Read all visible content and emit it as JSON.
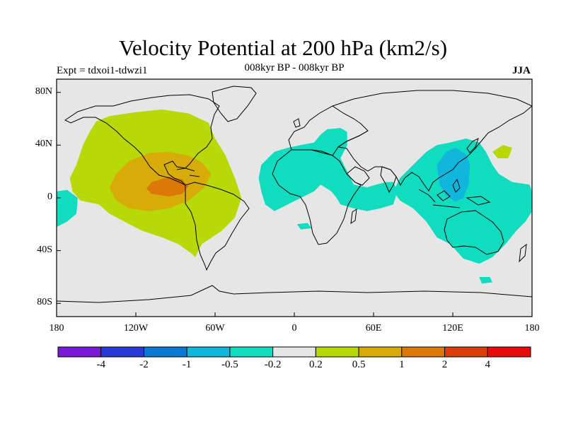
{
  "title": "Velocity Potential at 200 hPa (km2/s)",
  "subtitle": "008kyr BP - 008kyr BP",
  "experiment": "Expt = tdxoi1-tdwzi1",
  "season": "JJA",
  "map": {
    "projection": "cylindrical equidistant",
    "lon_range": [
      -180,
      180
    ],
    "lat_range": [
      -90,
      90
    ],
    "lat_ticks": [
      {
        "value": 80,
        "label": "80N"
      },
      {
        "value": 40,
        "label": "40N"
      },
      {
        "value": 0,
        "label": "0"
      },
      {
        "value": -40,
        "label": "40S"
      },
      {
        "value": -80,
        "label": "80S"
      }
    ],
    "lon_ticks": [
      {
        "value": -180,
        "label": "180"
      },
      {
        "value": -120,
        "label": "120W"
      },
      {
        "value": -60,
        "label": "60W"
      },
      {
        "value": 0,
        "label": "0"
      },
      {
        "value": 60,
        "label": "60E"
      },
      {
        "value": 120,
        "label": "120E"
      },
      {
        "value": 180,
        "label": "180"
      }
    ],
    "background_color": "#e6e6e6",
    "coastline_color": "#000000"
  },
  "colorbar": {
    "levels": [
      "-4",
      "-2",
      "-1",
      "-0.5",
      "-0.2",
      "0.2",
      "0.5",
      "1",
      "2",
      "4"
    ],
    "colors": [
      "#7a18d8",
      "#2a3ad6",
      "#0a78d4",
      "#10b6dc",
      "#10dcc0",
      "#e6e6e6",
      "#b8d808",
      "#d8ac08",
      "#dc7808",
      "#dc3c08",
      "#e60c0c"
    ]
  },
  "fields": [
    {
      "name": "americas-positive-0.2-0.5",
      "level": "0.2 to 0.5",
      "color": "#b8d808",
      "polygon": [
        [
          -150,
          58
        ],
        [
          -140,
          62
        ],
        [
          -120,
          65
        ],
        [
          -100,
          67
        ],
        [
          -80,
          64
        ],
        [
          -65,
          57
        ],
        [
          -60,
          45
        ],
        [
          -52,
          32
        ],
        [
          -45,
          15
        ],
        [
          -40,
          0
        ],
        [
          -45,
          -15
        ],
        [
          -55,
          -25
        ],
        [
          -70,
          -35
        ],
        [
          -75,
          -45
        ],
        [
          -78,
          -42
        ],
        [
          -88,
          -35
        ],
        [
          -100,
          -30
        ],
        [
          -115,
          -25
        ],
        [
          -125,
          -20
        ],
        [
          -140,
          -12
        ],
        [
          -148,
          -5
        ],
        [
          -162,
          -2
        ],
        [
          -168,
          5
        ],
        [
          -170,
          15
        ],
        [
          -165,
          25
        ],
        [
          -160,
          40
        ],
        [
          -155,
          50
        ]
      ]
    },
    {
      "name": "americas-positive-0.5-1",
      "level": "0.5 to 1",
      "color": "#d8ac08",
      "polygon": [
        [
          -125,
          28
        ],
        [
          -110,
          34
        ],
        [
          -95,
          35
        ],
        [
          -80,
          32
        ],
        [
          -70,
          27
        ],
        [
          -63,
          18
        ],
        [
          -68,
          8
        ],
        [
          -80,
          -2
        ],
        [
          -95,
          -8
        ],
        [
          -110,
          -10
        ],
        [
          -125,
          -8
        ],
        [
          -135,
          -2
        ],
        [
          -140,
          8
        ],
        [
          -135,
          18
        ]
      ]
    },
    {
      "name": "americas-positive-1-2",
      "level": "1 to 2",
      "color": "#dc7808",
      "polygon": [
        [
          -108,
          12
        ],
        [
          -95,
          16
        ],
        [
          -85,
          14
        ],
        [
          -80,
          9
        ],
        [
          -85,
          3
        ],
        [
          -95,
          1
        ],
        [
          -108,
          3
        ],
        [
          -112,
          7
        ]
      ]
    },
    {
      "name": "africa-negative",
      "level": "-0.5 to -0.2",
      "color": "#10dcc0",
      "polygon": [
        [
          -25,
          25
        ],
        [
          -15,
          35
        ],
        [
          -5,
          38
        ],
        [
          5,
          40
        ],
        [
          15,
          42
        ],
        [
          20,
          48
        ],
        [
          25,
          52
        ],
        [
          35,
          53
        ],
        [
          40,
          50
        ],
        [
          40,
          40
        ],
        [
          35,
          30
        ],
        [
          40,
          20
        ],
        [
          45,
          10
        ],
        [
          55,
          8
        ],
        [
          62,
          10
        ],
        [
          70,
          12
        ],
        [
          75,
          12
        ],
        [
          78,
          5
        ],
        [
          75,
          -5
        ],
        [
          65,
          -8
        ],
        [
          55,
          -10
        ],
        [
          45,
          -8
        ],
        [
          35,
          -5
        ],
        [
          32,
          0
        ],
        [
          28,
          5
        ],
        [
          20,
          10
        ],
        [
          15,
          5
        ],
        [
          5,
          0
        ],
        [
          -5,
          -5
        ],
        [
          -15,
          -10
        ],
        [
          -22,
          -5
        ],
        [
          -25,
          5
        ],
        [
          -27,
          15
        ]
      ]
    },
    {
      "name": "indonesia-negative",
      "level": "-0.5 to -0.2",
      "color": "#10dcc0",
      "polygon": [
        [
          80,
          15
        ],
        [
          90,
          25
        ],
        [
          100,
          35
        ],
        [
          108,
          40
        ],
        [
          118,
          42
        ],
        [
          130,
          45
        ],
        [
          140,
          42
        ],
        [
          145,
          35
        ],
        [
          150,
          25
        ],
        [
          155,
          18
        ],
        [
          165,
          12
        ],
        [
          178,
          10
        ],
        [
          180,
          5
        ],
        [
          180,
          -10
        ],
        [
          175,
          -18
        ],
        [
          168,
          -25
        ],
        [
          160,
          -35
        ],
        [
          150,
          -45
        ],
        [
          140,
          -50
        ],
        [
          128,
          -46
        ],
        [
          118,
          -35
        ],
        [
          108,
          -30
        ],
        [
          100,
          -18
        ],
        [
          90,
          -8
        ],
        [
          80,
          -2
        ],
        [
          75,
          5
        ]
      ]
    },
    {
      "name": "indonesia-negative-core",
      "level": "-1 to -0.5",
      "color": "#10b6dc",
      "polygon": [
        [
          108,
          25
        ],
        [
          115,
          35
        ],
        [
          122,
          38
        ],
        [
          130,
          33
        ],
        [
          133,
          25
        ],
        [
          132,
          10
        ],
        [
          128,
          0
        ],
        [
          122,
          -3
        ],
        [
          115,
          2
        ],
        [
          110,
          10
        ]
      ]
    },
    {
      "name": "pacific-east-negative",
      "level": "-0.5 to -0.2",
      "color": "#10dcc0",
      "polygon": [
        [
          -180,
          5
        ],
        [
          -172,
          6
        ],
        [
          -164,
          0
        ],
        [
          -165,
          -12
        ],
        [
          -172,
          -18
        ],
        [
          -180,
          -22
        ]
      ]
    },
    {
      "name": "pacific-west-positive",
      "level": "0.2 to 0.5",
      "color": "#b8d808",
      "polygon": [
        [
          150,
          35
        ],
        [
          158,
          40
        ],
        [
          165,
          38
        ],
        [
          162,
          30
        ],
        [
          154,
          30
        ]
      ]
    },
    {
      "name": "south-patch-1",
      "level": "-0.5 to -0.2",
      "color": "#10dcc0",
      "polygon": [
        [
          2,
          -20
        ],
        [
          10,
          -19
        ],
        [
          13,
          -23
        ],
        [
          5,
          -24
        ]
      ]
    },
    {
      "name": "south-patch-2",
      "level": "-0.5 to -0.2",
      "color": "#10dcc0",
      "polygon": [
        [
          140,
          -60
        ],
        [
          148,
          -60
        ],
        [
          150,
          -64
        ],
        [
          142,
          -65
        ]
      ]
    }
  ]
}
